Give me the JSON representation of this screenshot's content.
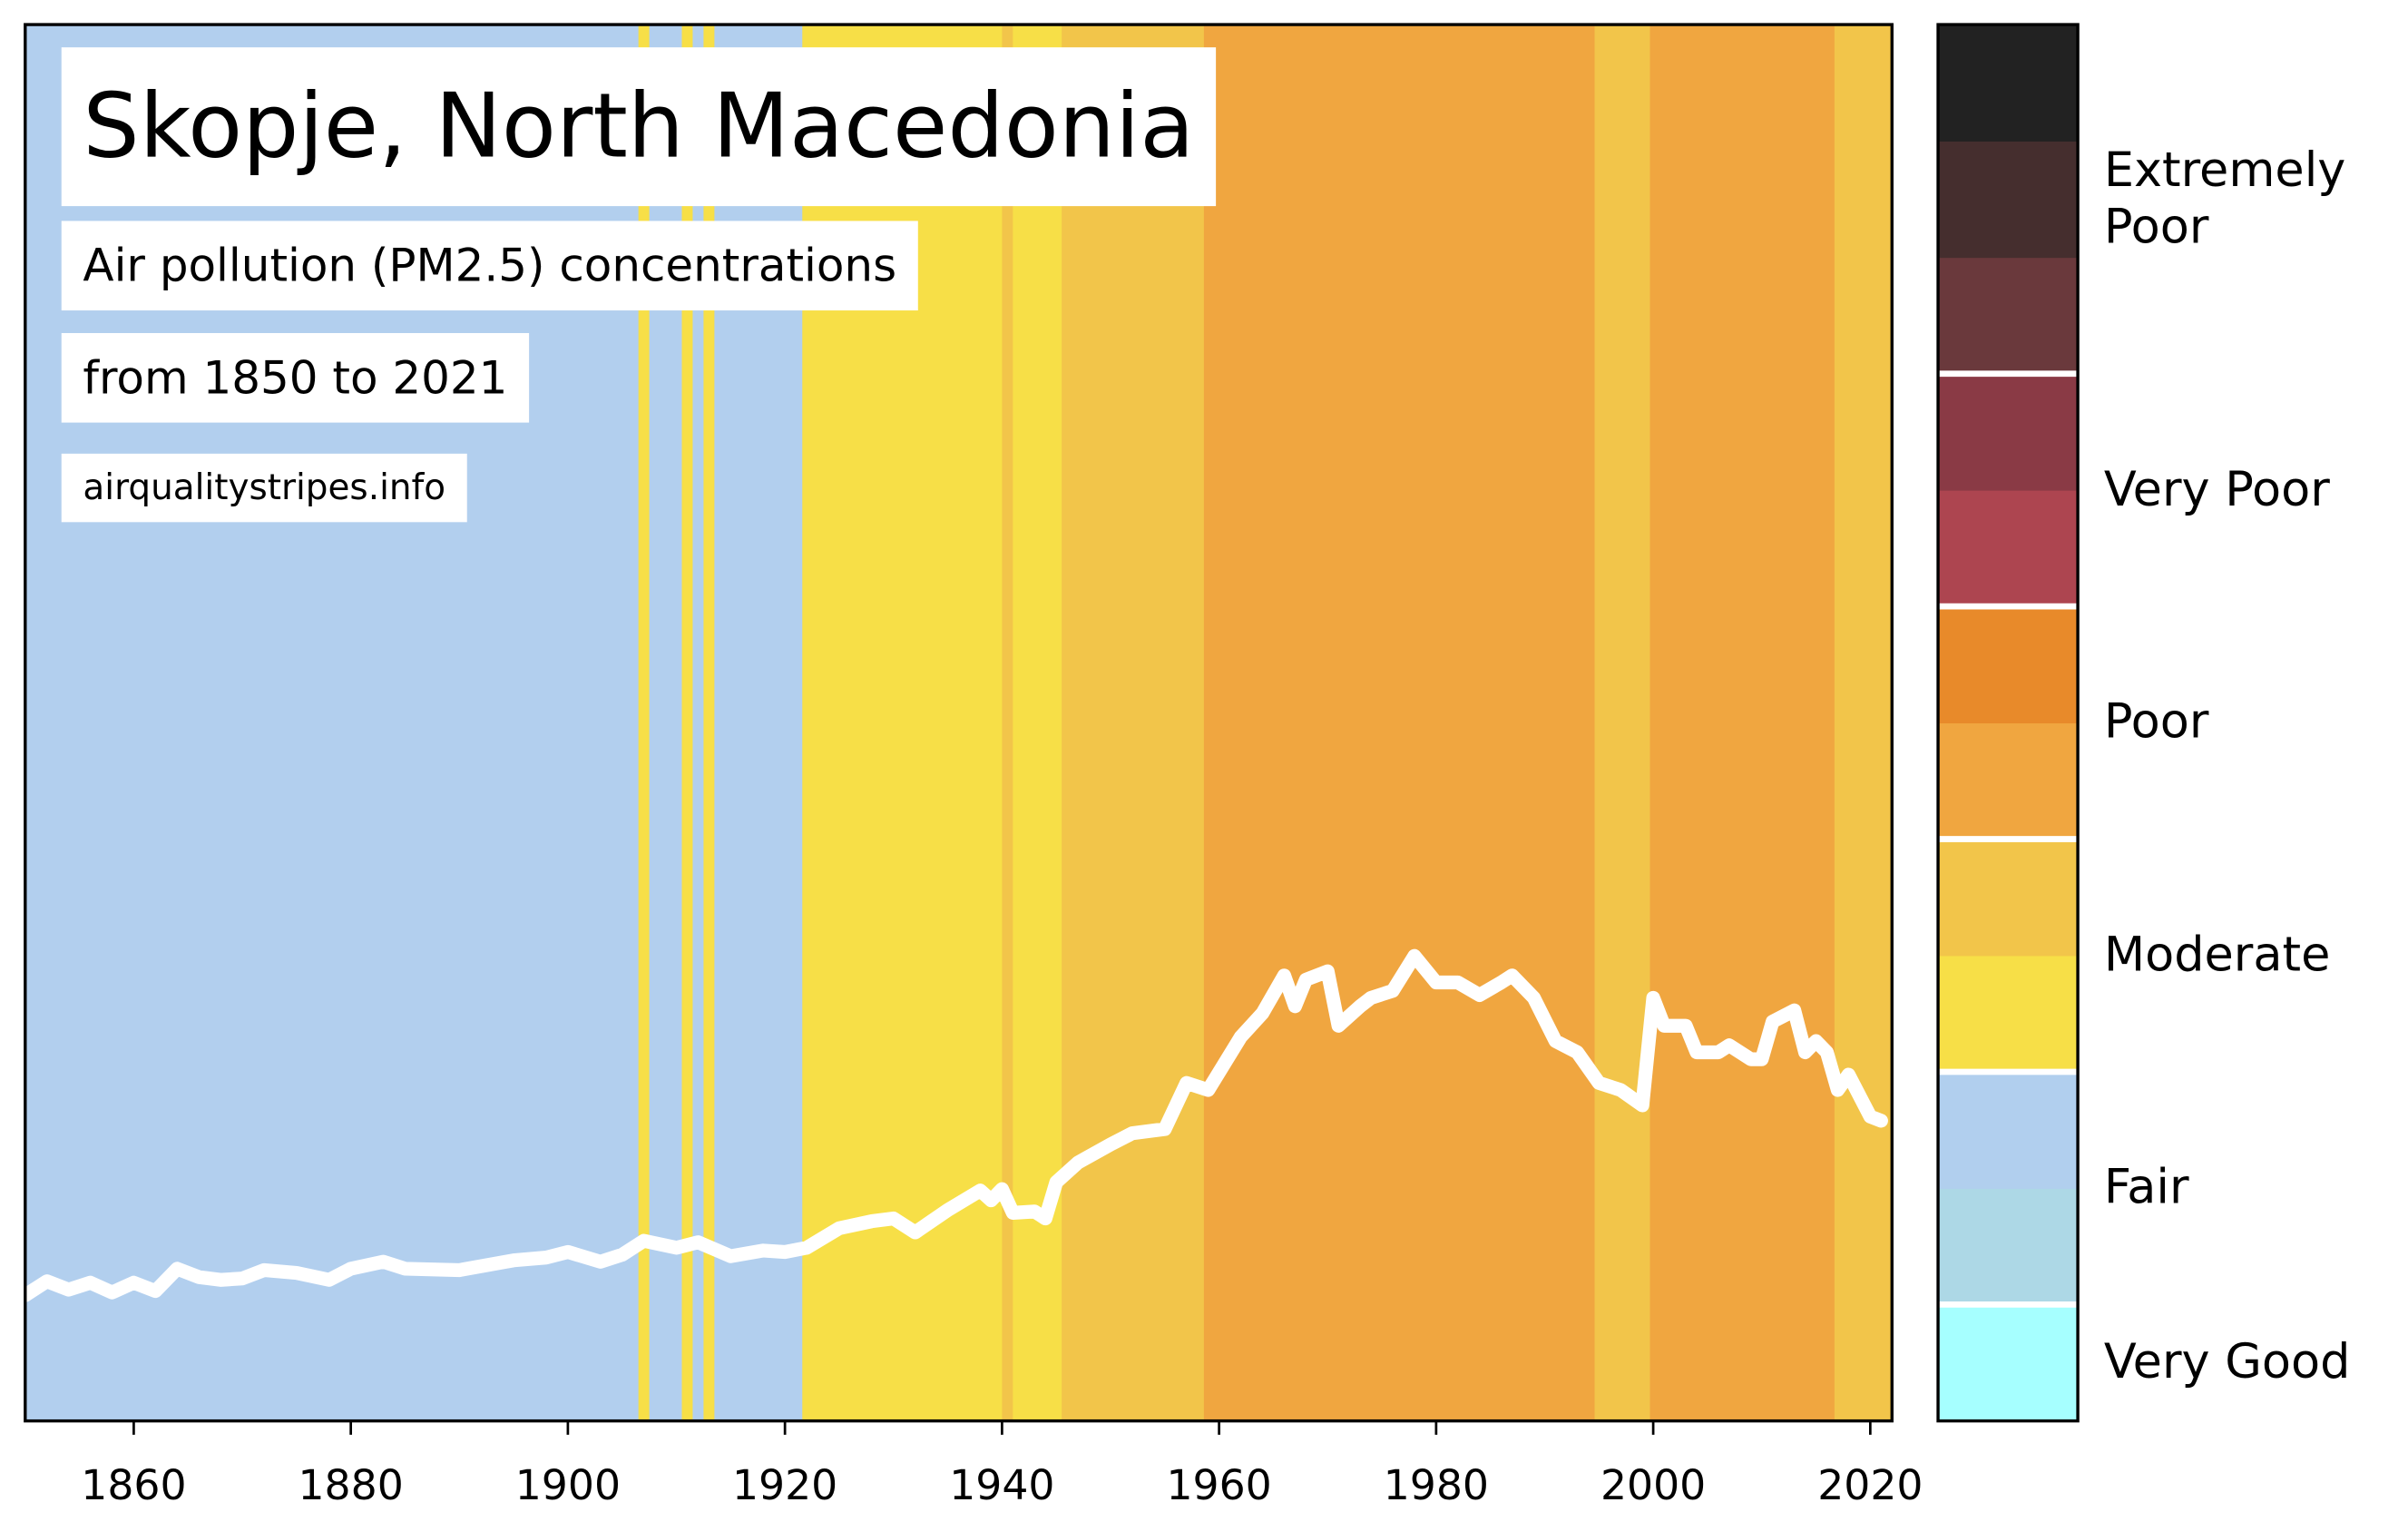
{
  "chart_data": {
    "type": "stripes",
    "title": "Skopje, North Macedonia",
    "subtitle": "Air pollution (PM2.5) concentrations",
    "period": "from 1850 to 2021",
    "source": "airqualitystripes.info",
    "xlim": [
      1850,
      2022
    ],
    "ylim": [
      0,
      100
    ],
    "xticks": [
      1860,
      1880,
      1900,
      1920,
      1940,
      1960,
      1980,
      2000,
      2020
    ],
    "stripes": [
      {
        "start": 1850,
        "end": 1906.5,
        "color": "#b2cfee"
      },
      {
        "start": 1906.5,
        "end": 1907.5,
        "color": "#f7df47"
      },
      {
        "start": 1907.5,
        "end": 1910.5,
        "color": "#b2cfee"
      },
      {
        "start": 1910.5,
        "end": 1911.5,
        "color": "#f7df47"
      },
      {
        "start": 1911.5,
        "end": 1912.5,
        "color": "#b2cfee"
      },
      {
        "start": 1912.5,
        "end": 1913.5,
        "color": "#f7df47"
      },
      {
        "start": 1913.5,
        "end": 1921.6,
        "color": "#b2cfee"
      },
      {
        "start": 1921.6,
        "end": 1940,
        "color": "#f7df47"
      },
      {
        "start": 1940,
        "end": 1941,
        "color": "#f2c54a"
      },
      {
        "start": 1941,
        "end": 1945.5,
        "color": "#f7df47"
      },
      {
        "start": 1945.5,
        "end": 1958.6,
        "color": "#f2c54a"
      },
      {
        "start": 1958.6,
        "end": 1994.6,
        "color": "#f0a640"
      },
      {
        "start": 1994.6,
        "end": 1999.7,
        "color": "#f2c54a"
      },
      {
        "start": 1999.7,
        "end": 2016.7,
        "color": "#f0a640"
      },
      {
        "start": 2016.7,
        "end": 2022,
        "color": "#f2c54a"
      }
    ],
    "line": {
      "color": "#ffffff",
      "x": [
        1850,
        1852,
        1854,
        1856,
        1858,
        1860,
        1862,
        1864,
        1866,
        1868,
        1870,
        1872,
        1875,
        1878,
        1880,
        1883,
        1885,
        1890,
        1895,
        1898,
        1900,
        1903,
        1905,
        1907,
        1910,
        1912,
        1915,
        1918,
        1920,
        1922,
        1925,
        1928,
        1930,
        1932,
        1935,
        1938,
        1939,
        1940,
        1941,
        1943,
        1944,
        1945,
        1947,
        1950,
        1952,
        1955,
        1957,
        1959,
        1962,
        1964,
        1966,
        1967,
        1968,
        1970,
        1971,
        1973,
        1974,
        1976,
        1978,
        1980,
        1982,
        1984,
        1986,
        1987,
        1989,
        1991,
        1993,
        1995,
        1997,
        1999,
        2000,
        2001,
        2003,
        2004,
        2006,
        2007,
        2009,
        2010,
        2011,
        2013,
        2014,
        2015,
        2016,
        2017,
        2018,
        2020,
        2021
      ],
      "values": [
        9.0,
        10.0,
        9.4,
        9.9,
        9.2,
        9.9,
        9.3,
        10.9,
        10.3,
        10.1,
        10.2,
        10.8,
        10.6,
        10.1,
        10.9,
        11.4,
        10.9,
        10.8,
        11.5,
        11.7,
        12.1,
        11.4,
        11.9,
        12.9,
        12.4,
        12.8,
        11.8,
        12.2,
        12.1,
        12.4,
        13.8,
        14.3,
        14.5,
        13.5,
        15.1,
        16.5,
        15.8,
        16.6,
        14.9,
        15.0,
        14.5,
        17.1,
        18.5,
        19.8,
        20.6,
        20.9,
        24.2,
        23.7,
        27.5,
        29.2,
        31.9,
        29.7,
        31.6,
        32.2,
        28.3,
        29.7,
        30.3,
        30.8,
        33.3,
        31.4,
        31.4,
        30.5,
        31.4,
        31.9,
        30.3,
        27.2,
        26.4,
        24.2,
        23.7,
        22.6,
        30.3,
        28.3,
        28.3,
        26.4,
        26.4,
        26.9,
        25.9,
        25.9,
        28.6,
        29.4,
        26.4,
        27.2,
        26.4,
        23.7,
        24.8,
        21.8,
        21.5
      ]
    },
    "colorbar": {
      "colors": [
        "#a6ffff",
        "#add8e6",
        "#b1cfee",
        "#f7df47",
        "#f2c54a",
        "#f0a640",
        "#e88a2a",
        "#ad4550",
        "#8a3a45",
        "#6a393c",
        "#452e2e",
        "#222222"
      ],
      "categories": [
        {
          "label": "Very Good",
          "span": 1
        },
        {
          "label": "Fair",
          "span": 2
        },
        {
          "label": "Moderate",
          "span": 2
        },
        {
          "label": "Poor",
          "span": 2
        },
        {
          "label": "Very Poor",
          "span": 2
        },
        {
          "label": "Extremely Poor",
          "span": 3
        }
      ]
    }
  }
}
